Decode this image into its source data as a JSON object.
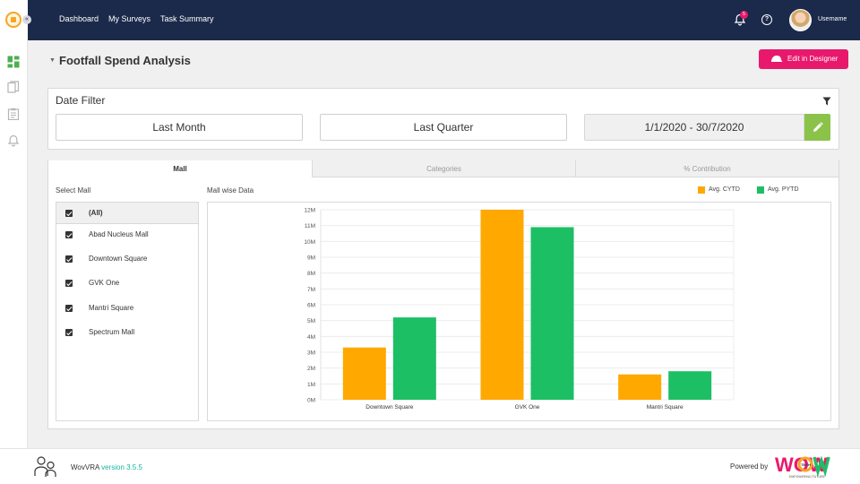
{
  "nav": {
    "links": [
      "Dashboard",
      "My Surveys",
      "Task Summary"
    ],
    "notification_count": "5",
    "help_glyph": "?",
    "username": "Username",
    "collapse_glyph": "«"
  },
  "page": {
    "title": "Footfall Spend Analysis",
    "edit_button": "Edit in Designer"
  },
  "date_filter": {
    "title": "Date Filter",
    "options": [
      "Last Month",
      "Last Quarter"
    ],
    "range": "1/1/2020 - 30/7/2020"
  },
  "tabs": [
    "Mall",
    "Categories",
    "% Contribution"
  ],
  "mall_panel": {
    "select_label": "Select Mall",
    "items": [
      "(All)",
      "Abad Nucleus Mall",
      "Downtown Square",
      "GVK One",
      "Mantri Square",
      "Spectrum Mall"
    ]
  },
  "chart_title": "Mall wise Data",
  "chart_data": {
    "type": "bar",
    "categories": [
      "Downtown Square",
      "GVK One",
      "Mantri Square"
    ],
    "series": [
      {
        "name": "Avg. CYTD",
        "color": "#ffa800",
        "values": [
          3300000,
          12000000,
          1600000
        ]
      },
      {
        "name": "Avg. PYTD",
        "color": "#1dbf64",
        "values": [
          5200000,
          10900000,
          1800000
        ]
      }
    ],
    "ylim": [
      0,
      12000000
    ],
    "yticks": [
      "0M",
      "1M",
      "2M",
      "3M",
      "4M",
      "5M",
      "6M",
      "7M",
      "8M",
      "9M",
      "10M",
      "11M",
      "12M"
    ],
    "grid": true,
    "legend": "top-right"
  },
  "footer": {
    "app_name": "WovVRA",
    "version": "version 3.5.5",
    "powered_by": "Powered by",
    "logo_text": "WOW",
    "logo_tag": "TECH",
    "logo_tagline": "EMPOWERING FUTURE"
  },
  "colors": {
    "header": "#1b2a4a",
    "accent": "#e8196d",
    "edit": "#8bc34a",
    "sidebar_active": "#4caf50"
  }
}
